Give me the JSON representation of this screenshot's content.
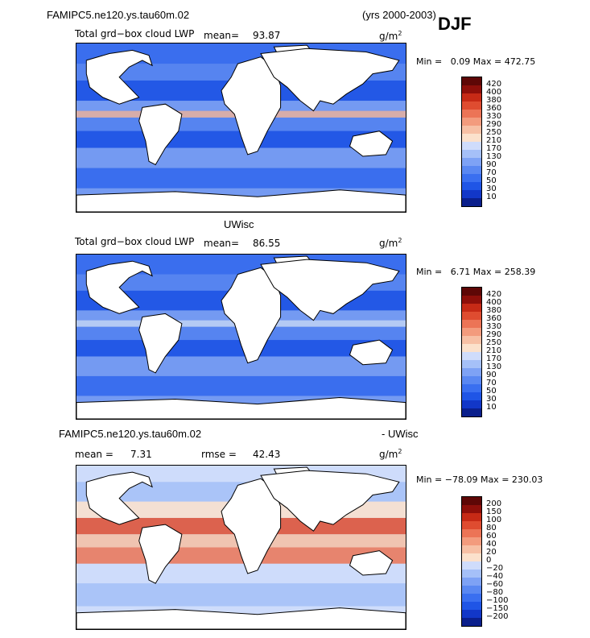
{
  "header": {
    "case_title": "FAMIPC5.ne120.ys.tau60m.02",
    "years": "(yrs 2000-2003)",
    "season": "DJF"
  },
  "panels": [
    {
      "field_label": "Total grd−box cloud LWP",
      "mean_label": "mean=",
      "mean_value": "93.87",
      "units": "g/m",
      "units_sup": "2",
      "min_label": "Min =",
      "min_value": "0.09",
      "max_label": "Max =",
      "max_value": "472.75",
      "colorbar": [
        "10",
        "30",
        "50",
        "70",
        "90",
        "130",
        "170",
        "210",
        "250",
        "290",
        "330",
        "360",
        "380",
        "400",
        "420"
      ],
      "ocean_color": "#3f6fe0",
      "band_color": "#f2b9a0"
    },
    {
      "title": "UWisc",
      "field_label": "Total grd−box cloud LWP",
      "mean_label": "mean=",
      "mean_value": "86.55",
      "units": "g/m",
      "units_sup": "2",
      "min_label": "Min =",
      "min_value": "6.71",
      "max_label": "Max =",
      "max_value": "258.39",
      "colorbar": [
        "10",
        "30",
        "50",
        "70",
        "90",
        "130",
        "170",
        "210",
        "250",
        "290",
        "330",
        "360",
        "380",
        "400",
        "420"
      ],
      "ocean_color": "#3f6fe0",
      "band_color": "#c9daf7"
    },
    {
      "diff_left": "FAMIPC5.ne120.ys.tau60m.02",
      "diff_right": "- UWisc",
      "mean_label": "mean =",
      "mean_value": "7.31",
      "rmse_label": "rmse =",
      "rmse_value": "42.43",
      "units": "g/m",
      "units_sup": "2",
      "min_label": "Min =",
      "min_value": "−78.09",
      "max_label": "Max =",
      "max_value": "230.03",
      "colorbar": [
        "−200",
        "−150",
        "−100",
        "−80",
        "−60",
        "−40",
        "−20",
        "0",
        "20",
        "40",
        "60",
        "80",
        "100",
        "150",
        "200"
      ],
      "ocean_color": "#c9daf7",
      "band_color": "#d8401c"
    }
  ],
  "colors": {
    "abs_scale": [
      "#0b1f8c",
      "#1237c8",
      "#1f55e6",
      "#3a6ff0",
      "#5a88f2",
      "#7ea2f5",
      "#a5c0f8",
      "#cfdcfb",
      "#fbe1cc",
      "#f7c0a5",
      "#f39b7d",
      "#ec7456",
      "#df4c30",
      "#c62a16",
      "#8e0f0a",
      "#5e0706"
    ],
    "diff_scale": [
      "#0b1f8c",
      "#1237c8",
      "#1f55e6",
      "#3a6ff0",
      "#5a88f2",
      "#7ea2f5",
      "#a5c0f8",
      "#cfdcfb",
      "#fbe1cc",
      "#f7c0a5",
      "#f39b7d",
      "#ec7456",
      "#df4c30",
      "#c62a16",
      "#8e0f0a",
      "#5e0706"
    ]
  }
}
